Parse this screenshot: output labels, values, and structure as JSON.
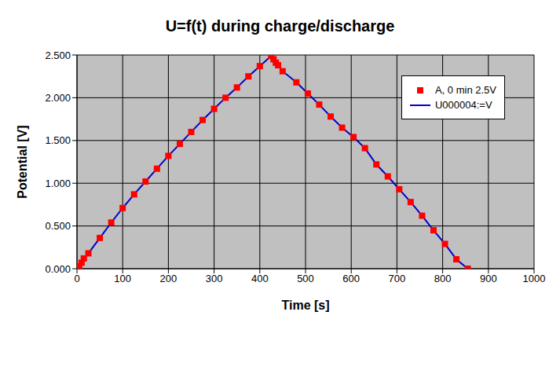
{
  "chart_data": {
    "type": "line",
    "title": "U=f(t) during charge/discharge",
    "x_label": "Time [s]",
    "y_label": "Potential [V]",
    "x": [
      0,
      2,
      5,
      10,
      15,
      25,
      50,
      75,
      100,
      125,
      150,
      175,
      200,
      225,
      250,
      275,
      300,
      325,
      350,
      375,
      400,
      425,
      430,
      435,
      440,
      450,
      480,
      505,
      530,
      555,
      580,
      605,
      630,
      655,
      680,
      705,
      730,
      755,
      780,
      805,
      830,
      855
    ],
    "series": [
      {
        "name": "A, 0 min 2.5V",
        "type": "scatter",
        "color": "#ff0000",
        "marker": "square",
        "values": [
          0.0,
          0.01,
          0.03,
          0.07,
          0.12,
          0.18,
          0.36,
          0.54,
          0.71,
          0.87,
          1.02,
          1.17,
          1.32,
          1.46,
          1.6,
          1.74,
          1.87,
          2.0,
          2.12,
          2.25,
          2.37,
          2.49,
          2.45,
          2.41,
          2.38,
          2.31,
          2.18,
          2.05,
          1.92,
          1.78,
          1.65,
          1.54,
          1.41,
          1.22,
          1.08,
          0.93,
          0.78,
          0.62,
          0.45,
          0.29,
          0.11,
          0.0
        ]
      },
      {
        "name": "U000004:=V",
        "type": "line",
        "color": "#0000cc",
        "line_style": "solid",
        "values": [
          0.0,
          0.01,
          0.03,
          0.07,
          0.12,
          0.18,
          0.36,
          0.54,
          0.71,
          0.87,
          1.02,
          1.17,
          1.32,
          1.46,
          1.6,
          1.74,
          1.87,
          2.0,
          2.12,
          2.25,
          2.37,
          2.49,
          2.45,
          2.41,
          2.38,
          2.31,
          2.18,
          2.05,
          1.92,
          1.78,
          1.65,
          1.54,
          1.41,
          1.22,
          1.08,
          0.93,
          0.78,
          0.62,
          0.45,
          0.29,
          0.11,
          0.0
        ]
      }
    ],
    "xlim": [
      0,
      1000
    ],
    "xticks": [
      0,
      100,
      200,
      300,
      400,
      500,
      600,
      700,
      800,
      900,
      1000
    ],
    "ylim": [
      0,
      2.5
    ],
    "yticks": [
      {
        "value": 0,
        "label": "0.000"
      },
      {
        "value": 0.5,
        "label": "0.500"
      },
      {
        "value": 1,
        "label": "1.000"
      },
      {
        "value": 1.5,
        "label": "1.500"
      },
      {
        "value": 2,
        "label": "2.000"
      },
      {
        "value": 2.5,
        "label": "2.500"
      }
    ],
    "grid": true,
    "legend": "top right"
  }
}
